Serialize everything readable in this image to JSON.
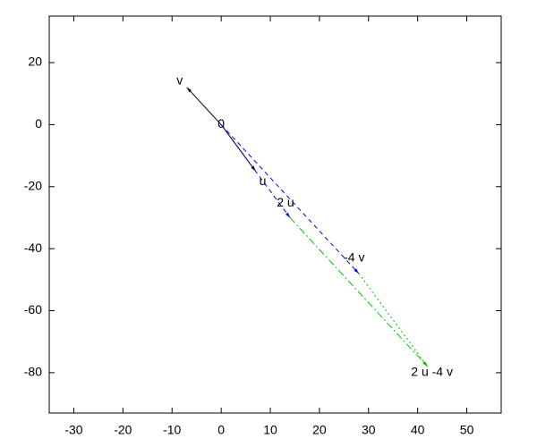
{
  "chart_data": {
    "type": "vectors",
    "origin_label": "0",
    "xlim": [
      -35,
      57
    ],
    "ylim": [
      -93,
      35
    ],
    "xticks": [
      -30,
      -20,
      -10,
      0,
      10,
      20,
      30,
      40,
      50
    ],
    "yticks": [
      -80,
      -60,
      -40,
      -20,
      0,
      20
    ],
    "series": [
      {
        "name": "u",
        "color": "#000000",
        "dash": "solid",
        "x": [
          0,
          7
        ],
        "y": [
          0,
          -15
        ]
      },
      {
        "name": "v",
        "color": "#000000",
        "dash": "solid",
        "x": [
          0,
          -7
        ],
        "y": [
          0,
          12
        ]
      },
      {
        "name": "2 u",
        "color": "#0000ff",
        "dash": "dashed",
        "x": [
          0,
          14
        ],
        "y": [
          0,
          -30
        ]
      },
      {
        "name": "-4 v",
        "color": "#0000ff",
        "dash": "dashed",
        "x": [
          0,
          28
        ],
        "y": [
          0,
          -48
        ]
      },
      {
        "name": "2 u -4 v",
        "color": "#00cc00",
        "dash": "dashdot",
        "x": [
          14,
          42
        ],
        "y": [
          -30,
          -78
        ]
      },
      {
        "color": "#00cc00",
        "dash": "dotted",
        "x": [
          28,
          42
        ],
        "y": [
          -48,
          -78
        ]
      }
    ]
  }
}
